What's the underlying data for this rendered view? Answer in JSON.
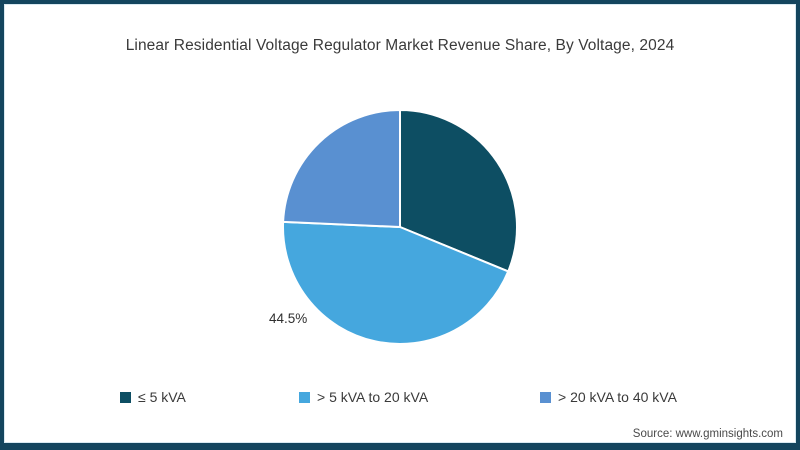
{
  "title": "Linear Residential Voltage Regulator Market Revenue Share, By Voltage, 2024",
  "source": "Source: www.gminsights.com",
  "frame": {
    "border_color": "#14455e",
    "inner_line_color": "#d9e9f1",
    "background": "#ffffff"
  },
  "chart_data": {
    "type": "pie",
    "title": "Linear Residential Voltage Regulator Market Revenue Share, By Voltage, 2024",
    "start_angle_deg": 0,
    "direction": "clockwise",
    "legend_position": "bottom",
    "slices": [
      {
        "label": "≤ 5 kVA",
        "value": 31.2,
        "color": "#0d4e63",
        "data_label": ""
      },
      {
        "label": "> 5 kVA to 20 kVA",
        "value": 44.5,
        "color": "#45a7de",
        "data_label": "44.5%"
      },
      {
        "label": "> 20 kVA to 40 kVA",
        "value": 24.3,
        "color": "#5990d1",
        "data_label": ""
      }
    ]
  }
}
